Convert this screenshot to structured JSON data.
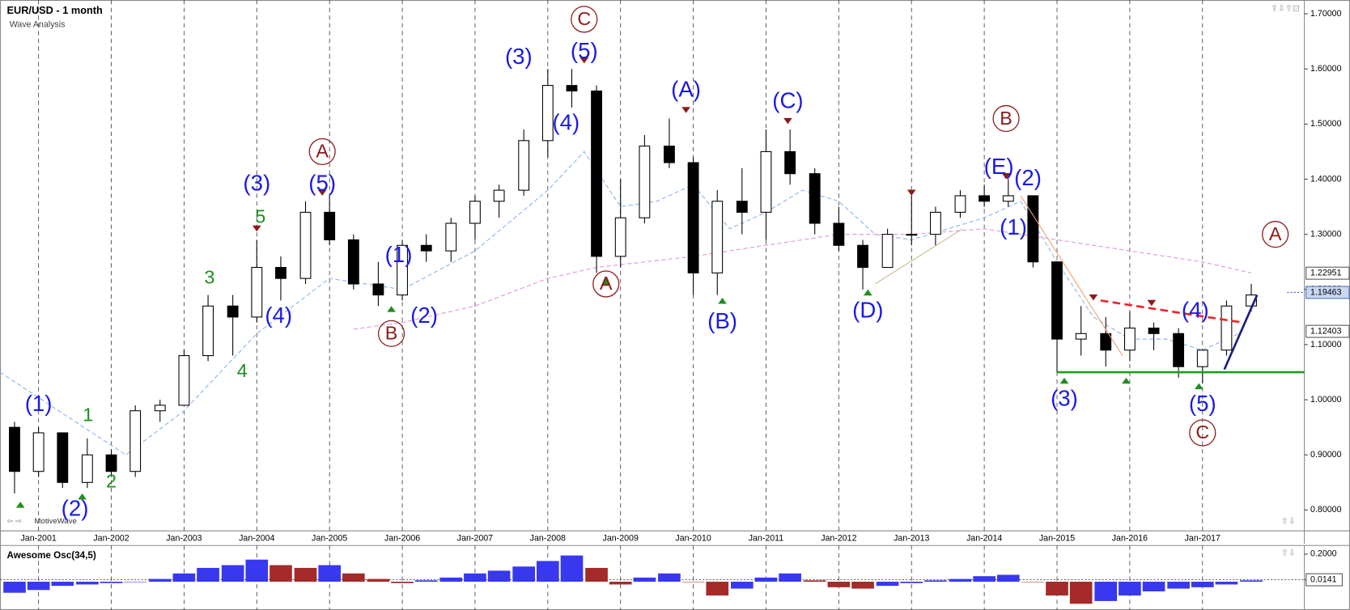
{
  "chart_data": [
    {
      "type": "candlestick",
      "title": "EUR/USD - 1 month",
      "subtitle": "Wave Analysis",
      "footer": "MotiveWave",
      "xlim": [
        2000.47,
        2018.4
      ],
      "ylim": [
        0.77,
        1.725
      ],
      "xticks": [
        {
          "value": 2001,
          "label": "Jan-2001"
        },
        {
          "value": 2002,
          "label": "Jan-2002"
        },
        {
          "value": 2003,
          "label": "Jan-2003"
        },
        {
          "value": 2004,
          "label": "Jan-2004"
        },
        {
          "value": 2005,
          "label": "Jan-2005"
        },
        {
          "value": 2006,
          "label": "Jan-2006"
        },
        {
          "value": 2007,
          "label": "Jan-2007"
        },
        {
          "value": 2008,
          "label": "Jan-2008"
        },
        {
          "value": 2009,
          "label": "Jan-2009"
        },
        {
          "value": 2010,
          "label": "Jan-2010"
        },
        {
          "value": 2011,
          "label": "Jan-2011"
        },
        {
          "value": 2012,
          "label": "Jan-2012"
        },
        {
          "value": 2013,
          "label": "Jan-2013"
        },
        {
          "value": 2014,
          "label": "Jan-2014"
        },
        {
          "value": 2015,
          "label": "Jan-2015"
        },
        {
          "value": 2016,
          "label": "Jan-2016"
        },
        {
          "value": 2017,
          "label": "Jan-2017"
        }
      ],
      "yticks": [
        {
          "value": 1.7,
          "label": "1.70000"
        },
        {
          "value": 1.6,
          "label": "1.60000"
        },
        {
          "value": 1.5,
          "label": "1.50000"
        },
        {
          "value": 1.4,
          "label": "1.40000"
        },
        {
          "value": 1.3,
          "label": "1.30000"
        },
        {
          "value": 1.2,
          "label": "1.20000"
        },
        {
          "value": 1.1,
          "label": "1.10000"
        },
        {
          "value": 1.0,
          "label": "1.00000"
        },
        {
          "value": 0.9,
          "label": "0.90000"
        },
        {
          "value": 0.8,
          "label": "0.80000"
        }
      ],
      "levels": [
        1.22951,
        1.12403
      ],
      "last_price": 1.19463,
      "x": [
        2000.67,
        2001.0,
        2001.33,
        2001.67,
        2002.0,
        2002.33,
        2002.67,
        2003.0,
        2003.33,
        2003.67,
        2004.0,
        2004.33,
        2004.67,
        2005.0,
        2005.33,
        2005.67,
        2006.0,
        2006.33,
        2006.67,
        2007.0,
        2007.33,
        2007.67,
        2008.0,
        2008.33,
        2008.67,
        2009.0,
        2009.33,
        2009.67,
        2010.0,
        2010.33,
        2010.67,
        2011.0,
        2011.33,
        2011.67,
        2012.0,
        2012.33,
        2012.67,
        2013.0,
        2013.33,
        2013.67,
        2014.0,
        2014.33,
        2014.67,
        2015.0,
        2015.33,
        2015.67,
        2016.0,
        2016.33,
        2016.67,
        2017.0,
        2017.33,
        2017.67
      ],
      "open": [
        0.95,
        0.87,
        0.94,
        0.85,
        0.9,
        0.87,
        0.98,
        0.99,
        1.08,
        1.17,
        1.15,
        1.24,
        1.22,
        1.34,
        1.29,
        1.21,
        1.19,
        1.28,
        1.27,
        1.32,
        1.36,
        1.38,
        1.47,
        1.57,
        1.56,
        1.26,
        1.33,
        1.46,
        1.43,
        1.23,
        1.36,
        1.34,
        1.45,
        1.41,
        1.32,
        1.28,
        1.24,
        1.3,
        1.3,
        1.34,
        1.37,
        1.36,
        1.37,
        1.25,
        1.11,
        1.12,
        1.09,
        1.13,
        1.12,
        1.06,
        1.09,
        1.17
      ],
      "high": [
        0.96,
        0.95,
        0.94,
        0.93,
        0.91,
        0.99,
        1.0,
        1.09,
        1.19,
        1.19,
        1.29,
        1.26,
        1.36,
        1.37,
        1.3,
        1.25,
        1.29,
        1.3,
        1.33,
        1.37,
        1.39,
        1.49,
        1.6,
        1.6,
        1.57,
        1.4,
        1.48,
        1.51,
        1.44,
        1.38,
        1.42,
        1.49,
        1.49,
        1.42,
        1.35,
        1.29,
        1.31,
        1.37,
        1.35,
        1.38,
        1.39,
        1.4,
        1.37,
        1.25,
        1.17,
        1.15,
        1.16,
        1.14,
        1.13,
        1.09,
        1.18,
        1.21
      ],
      "low": [
        0.83,
        0.86,
        0.84,
        0.84,
        0.86,
        0.86,
        0.96,
        0.99,
        1.07,
        1.08,
        1.14,
        1.18,
        1.21,
        1.28,
        1.2,
        1.17,
        1.18,
        1.25,
        1.25,
        1.29,
        1.33,
        1.37,
        1.44,
        1.53,
        1.23,
        1.24,
        1.32,
        1.42,
        1.19,
        1.19,
        1.3,
        1.29,
        1.39,
        1.3,
        1.27,
        1.2,
        1.24,
        1.28,
        1.28,
        1.33,
        1.35,
        1.35,
        1.24,
        1.05,
        1.08,
        1.06,
        1.07,
        1.09,
        1.04,
        1.03,
        1.08,
        1.16
      ],
      "close": [
        0.87,
        0.94,
        0.85,
        0.9,
        0.87,
        0.98,
        0.99,
        1.08,
        1.17,
        1.15,
        1.24,
        1.22,
        1.34,
        1.29,
        1.21,
        1.19,
        1.28,
        1.27,
        1.32,
        1.36,
        1.38,
        1.47,
        1.57,
        1.56,
        1.26,
        1.33,
        1.46,
        1.43,
        1.23,
        1.36,
        1.34,
        1.45,
        1.41,
        1.32,
        1.28,
        1.24,
        1.3,
        1.3,
        1.34,
        1.37,
        1.36,
        1.37,
        1.25,
        1.11,
        1.12,
        1.09,
        1.13,
        1.12,
        1.06,
        1.09,
        1.17,
        1.19
      ],
      "overlays": [
        {
          "color": "#8fb8f0",
          "x": [
            2000.47,
            2002.2,
            2003.0,
            2004.0,
            2005.0,
            2006.0,
            2007.0,
            2008.0,
            2008.5,
            2009.0,
            2009.5,
            2010.0,
            2010.5,
            2011.0,
            2011.5,
            2012.0,
            2012.5,
            2013.0,
            2014.0,
            2014.5,
            2015.0,
            2015.5,
            2016.0,
            2016.5,
            2017.0,
            2017.5
          ],
          "values": [
            1.05,
            0.9,
            0.98,
            1.12,
            1.22,
            1.2,
            1.27,
            1.38,
            1.45,
            1.35,
            1.36,
            1.39,
            1.31,
            1.34,
            1.38,
            1.36,
            1.3,
            1.29,
            1.33,
            1.36,
            1.25,
            1.15,
            1.11,
            1.11,
            1.09,
            1.12
          ]
        },
        {
          "color": "#e29be0",
          "x": [
            2005.33,
            2006.0,
            2007.0,
            2008.0,
            2008.67,
            2010.0,
            2011.0,
            2012.0,
            2013.0,
            2014.0,
            2014.5,
            2015.0,
            2016.0,
            2017.0,
            2017.67
          ],
          "values": [
            1.128,
            1.14,
            1.17,
            1.22,
            1.24,
            1.26,
            1.28,
            1.3,
            1.3,
            1.31,
            1.3,
            1.29,
            1.27,
            1.25,
            1.23
          ]
        }
      ],
      "trendlines": [
        {
          "color": "#f0a070",
          "dashed": false,
          "width": 1,
          "x": [
            2014.5,
            2015.9
          ],
          "values": [
            1.37,
            1.08
          ]
        },
        {
          "color": "#c8b88a",
          "dashed": false,
          "width": 1,
          "x": [
            2012.5,
            2013.7
          ],
          "values": [
            1.21,
            1.31
          ]
        },
        {
          "color": "#e8262a",
          "dashed": true,
          "width": 2.5,
          "x": [
            2015.6,
            2017.55
          ],
          "values": [
            1.18,
            1.14
          ]
        },
        {
          "color": "#1e9e1e",
          "dashed": false,
          "width": 2.5,
          "x": [
            2015.0,
            2018.4
          ],
          "values": [
            1.05,
            1.05
          ]
        },
        {
          "color": "#1c1c80",
          "dashed": false,
          "width": 2.5,
          "x": [
            2017.3,
            2017.75
          ],
          "values": [
            1.055,
            1.19
          ]
        }
      ],
      "markers": [
        {
          "color": "#8b1a1a",
          "direction": "down",
          "x": [
            2004.0,
            2004.9,
            2008.5,
            2009.9,
            2011.3,
            2013.0,
            2014.3,
            2015.5,
            2016.3
          ],
          "values": [
            1.305,
            1.37,
            1.61,
            1.52,
            1.5,
            1.37,
            1.4,
            1.18,
            1.17
          ]
        },
        {
          "color": "#1e8e1e",
          "direction": "up",
          "x": [
            2000.75,
            2001.6,
            2005.85,
            2008.8,
            2010.4,
            2012.4,
            2015.1,
            2015.95,
            2016.95
          ],
          "values": [
            0.815,
            0.83,
            1.17,
            1.22,
            1.185,
            1.2,
            1.04,
            1.04,
            1.03
          ]
        }
      ],
      "annotations": [
        {
          "color": "#1a1ae6",
          "circled": false,
          "labels": [
            "(1)",
            "(2)",
            "(3)",
            "(4)",
            "(5)",
            "(1)",
            "(2)",
            "(3)",
            "(5)",
            "(4)",
            "(A)",
            "(B)",
            "(C)",
            "(D)",
            "(E)",
            "(2)",
            "(1)",
            "(3)",
            "(4)",
            "(5)"
          ],
          "x": [
            2001.0,
            2001.5,
            2004.0,
            2004.3,
            2004.9,
            2005.95,
            2006.3,
            2007.6,
            2008.5,
            2008.25,
            2009.9,
            2010.4,
            2011.3,
            2012.4,
            2014.2,
            2014.6,
            2014.4,
            2015.1,
            2016.9,
            2017.0
          ],
          "y": [
            0.99,
            0.8,
            1.39,
            1.15,
            1.39,
            1.26,
            1.15,
            1.62,
            1.63,
            1.5,
            1.56,
            1.14,
            1.54,
            1.16,
            1.42,
            1.4,
            1.31,
            1.0,
            1.16,
            0.99
          ]
        },
        {
          "color": "#8b1a1a",
          "circled": true,
          "labels": [
            "C",
            "A",
            "B",
            "A",
            "B",
            "A",
            "C"
          ],
          "x": [
            2008.5,
            2004.9,
            2005.85,
            2008.8,
            2014.3,
            2018.0,
            2017.0
          ],
          "y": [
            1.69,
            1.45,
            1.12,
            1.21,
            1.51,
            1.3,
            0.94
          ]
        },
        {
          "color": "#1e8e1e",
          "circled": false,
          "labels": [
            "1",
            "2",
            "3",
            "4",
            "5"
          ],
          "x": [
            2001.68,
            2002.0,
            2003.35,
            2003.8,
            2004.05
          ],
          "y": [
            0.97,
            0.85,
            1.22,
            1.05,
            1.33
          ]
        }
      ]
    },
    {
      "type": "bar",
      "title": "Awesome Osc(34,5)",
      "ylim": [
        -0.18,
        0.25
      ],
      "yticks": [
        {
          "value": 0.2,
          "label": "0.2000"
        },
        0.0141
      ],
      "rising_color": "#3838f0",
      "falling_color": "#a52a2a",
      "x": [
        2000.67,
        2001.0,
        2001.33,
        2001.67,
        2002.0,
        2002.33,
        2002.67,
        2003.0,
        2003.33,
        2003.67,
        2004.0,
        2004.33,
        2004.67,
        2005.0,
        2005.33,
        2005.67,
        2006.0,
        2006.33,
        2006.67,
        2007.0,
        2007.33,
        2007.67,
        2008.0,
        2008.33,
        2008.67,
        2009.0,
        2009.33,
        2009.67,
        2010.0,
        2010.33,
        2010.67,
        2011.0,
        2011.33,
        2011.67,
        2012.0,
        2012.33,
        2012.67,
        2013.0,
        2013.33,
        2013.67,
        2014.0,
        2014.33,
        2014.67,
        2015.0,
        2015.33,
        2015.67,
        2016.0,
        2016.33,
        2016.67,
        2017.0,
        2017.33,
        2017.67
      ],
      "values": [
        -0.08,
        -0.06,
        -0.03,
        -0.02,
        -0.01,
        0.0,
        0.02,
        0.06,
        0.1,
        0.12,
        0.16,
        0.12,
        0.1,
        0.12,
        0.06,
        0.02,
        -0.01,
        0.01,
        0.03,
        0.06,
        0.08,
        0.11,
        0.15,
        0.19,
        0.1,
        -0.02,
        0.03,
        0.06,
        0.0,
        -0.1,
        -0.05,
        0.03,
        0.06,
        0.01,
        -0.04,
        -0.05,
        -0.03,
        -0.01,
        0.01,
        0.02,
        0.04,
        0.05,
        0.0,
        -0.1,
        -0.16,
        -0.14,
        -0.1,
        -0.07,
        -0.05,
        -0.04,
        -0.02,
        0.01
      ]
    }
  ]
}
